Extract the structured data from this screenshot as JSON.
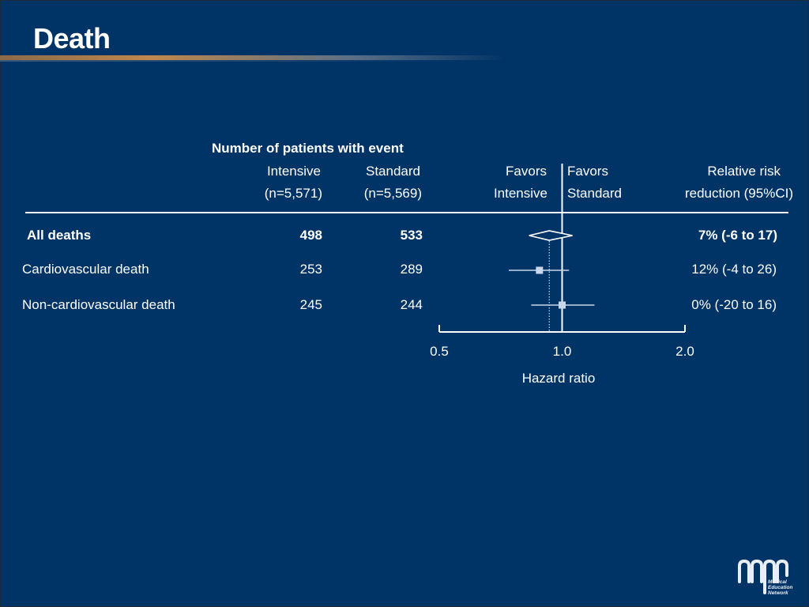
{
  "slide": {
    "title": "Death"
  },
  "table": {
    "group_header": "Number of patients with event",
    "col_intensive": [
      "Intensive",
      "(n=5,571)"
    ],
    "col_standard": [
      "Standard",
      "(n=5,569)"
    ],
    "favors_left": [
      "Favors",
      "Intensive"
    ],
    "favors_right": [
      "Favors",
      "Standard"
    ],
    "col_rrr": [
      "Relative risk",
      "reduction (95%CI)"
    ]
  },
  "chart_data": {
    "type": "forest",
    "xlabel": "Hazard ratio",
    "scale": "log",
    "xlim": [
      0.5,
      2.0
    ],
    "ticks": [
      {
        "value": 0.5,
        "label": "0.5"
      },
      {
        "value": 1.0,
        "label": "1.0"
      },
      {
        "value": 2.0,
        "label": "2.0"
      }
    ],
    "reference_line": 1.0,
    "overall_line": 0.93,
    "rows": [
      {
        "label": "All deaths",
        "intensive": "498",
        "standard": "533",
        "hr": 0.93,
        "ci": [
          0.83,
          1.06
        ],
        "rrr": "7% (-6 to 17)",
        "bold": true,
        "marker": "diamond"
      },
      {
        "label": "Cardiovascular death",
        "intensive": "253",
        "standard": "289",
        "hr": 0.88,
        "ci": [
          0.74,
          1.04
        ],
        "rrr": "12% (-4 to 26)",
        "bold": false,
        "marker": "square"
      },
      {
        "label": "Non-cardiovascular death",
        "intensive": "245",
        "standard": "244",
        "hr": 1.0,
        "ci": [
          0.84,
          1.2
        ],
        "rrr": "0% (-20 to 16)",
        "bold": false,
        "marker": "square"
      }
    ]
  },
  "colors": {
    "background": "#003366",
    "text": "#ffffff",
    "marker": "#c8d8ea"
  },
  "logo": {
    "text": [
      "Medical",
      "Education",
      "Network"
    ]
  }
}
